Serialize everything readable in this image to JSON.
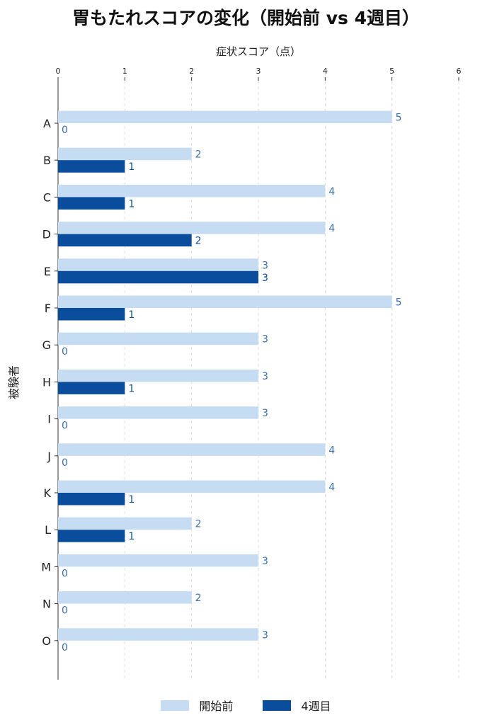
{
  "chart_data": {
    "type": "bar",
    "orientation": "horizontal",
    "title": "胃もたれスコアの変化（開始前 vs 4週目）",
    "xlabel": "症状スコア（点）",
    "ylabel": "被験者",
    "xlim": [
      0,
      6
    ],
    "x_ticks": [
      "0",
      "1",
      "2",
      "3",
      "4",
      "5",
      "6"
    ],
    "x_axis_position": "top",
    "grid": "vertical dashed",
    "legend_position": "bottom",
    "categories": [
      "A",
      "B",
      "C",
      "D",
      "E",
      "F",
      "G",
      "H",
      "I",
      "J",
      "K",
      "L",
      "M",
      "N",
      "O"
    ],
    "series": [
      {
        "name": "開始前",
        "color": "#c6dcf3",
        "values": [
          5,
          2,
          4,
          4,
          3,
          5,
          3,
          3,
          3,
          4,
          4,
          2,
          3,
          2,
          3
        ]
      },
      {
        "name": "4週目",
        "color": "#0a4d9c",
        "values": [
          0,
          1,
          1,
          2,
          3,
          1,
          0,
          1,
          0,
          0,
          1,
          1,
          0,
          0,
          0
        ]
      }
    ]
  }
}
